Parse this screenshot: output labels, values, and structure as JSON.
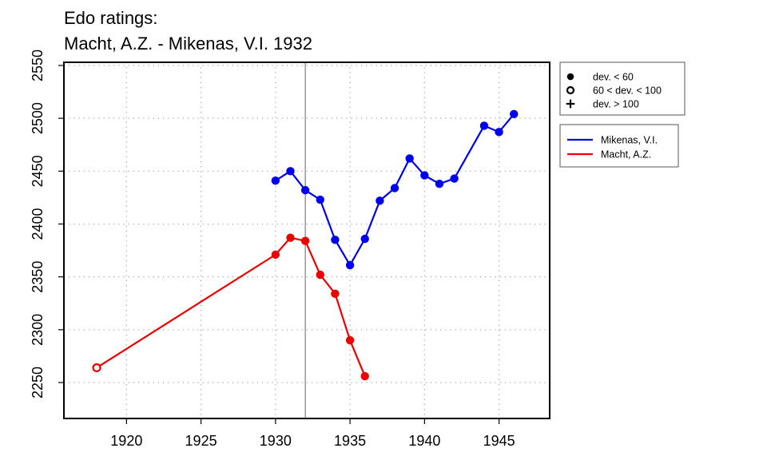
{
  "chart_data": {
    "type": "line",
    "title_lines": [
      "Edo ratings:",
      "Macht, A.Z. - Mikenas, V.I. 1932"
    ],
    "xlabel": "",
    "ylabel": "",
    "xlim": [
      1915.8,
      1948.4
    ],
    "ylim": [
      2216,
      2553
    ],
    "x_ticks": [
      1920,
      1925,
      1930,
      1935,
      1940,
      1945
    ],
    "y_ticks": [
      2250,
      2300,
      2350,
      2400,
      2450,
      2500,
      2550
    ],
    "x_tick_labels": [
      "1920",
      "1925",
      "1930",
      "1935",
      "1940",
      "1945"
    ],
    "y_tick_labels": [
      "2250",
      "2300",
      "2350",
      "2400",
      "2450",
      "2500",
      "2550"
    ],
    "grid": "dotted",
    "reference_line_x": 1932,
    "deviation_legend": {
      "placement": "top-right",
      "entries": [
        {
          "label": "dev. < 60",
          "symbol": "filled-circle"
        },
        {
          "label": "60 < dev. < 100",
          "symbol": "open-circle"
        },
        {
          "label": "dev. > 100",
          "symbol": "plus"
        }
      ]
    },
    "series_legend": {
      "placement": "right",
      "entries": [
        {
          "label": "Mikenas, V.I.",
          "color": "#0000ee"
        },
        {
          "label": "Macht, A.Z.",
          "color": "#ee0000"
        }
      ]
    },
    "series": [
      {
        "name": "Mikenas, V.I.",
        "color": "#0000ee",
        "points": [
          {
            "x": 1930,
            "y": 2441,
            "marker": "filled-circle"
          },
          {
            "x": 1931,
            "y": 2450,
            "marker": "filled-circle"
          },
          {
            "x": 1932,
            "y": 2432,
            "marker": "filled-circle"
          },
          {
            "x": 1933,
            "y": 2423,
            "marker": "filled-circle"
          },
          {
            "x": 1934,
            "y": 2385,
            "marker": "filled-circle"
          },
          {
            "x": 1935,
            "y": 2361,
            "marker": "filled-circle"
          },
          {
            "x": 1936,
            "y": 2386,
            "marker": "filled-circle"
          },
          {
            "x": 1937,
            "y": 2422,
            "marker": "filled-circle"
          },
          {
            "x": 1938,
            "y": 2434,
            "marker": "filled-circle"
          },
          {
            "x": 1939,
            "y": 2462,
            "marker": "filled-circle"
          },
          {
            "x": 1940,
            "y": 2446,
            "marker": "filled-circle"
          },
          {
            "x": 1941,
            "y": 2438,
            "marker": "filled-circle"
          },
          {
            "x": 1942,
            "y": 2443,
            "marker": "filled-circle"
          },
          {
            "x": 1944,
            "y": 2493,
            "marker": "filled-circle"
          },
          {
            "x": 1945,
            "y": 2487,
            "marker": "filled-circle"
          },
          {
            "x": 1946,
            "y": 2504,
            "marker": "filled-circle"
          }
        ]
      },
      {
        "name": "Macht, A.Z.",
        "color": "#ee0000",
        "points": [
          {
            "x": 1918,
            "y": 2264,
            "marker": "open-circle"
          },
          {
            "x": 1930,
            "y": 2371,
            "marker": "filled-circle"
          },
          {
            "x": 1931,
            "y": 2387,
            "marker": "filled-circle"
          },
          {
            "x": 1932,
            "y": 2384,
            "marker": "filled-circle"
          },
          {
            "x": 1933,
            "y": 2352,
            "marker": "filled-circle"
          },
          {
            "x": 1934,
            "y": 2334,
            "marker": "filled-circle"
          },
          {
            "x": 1935,
            "y": 2290,
            "marker": "filled-circle"
          },
          {
            "x": 1936,
            "y": 2256,
            "marker": "filled-circle"
          }
        ]
      }
    ]
  }
}
